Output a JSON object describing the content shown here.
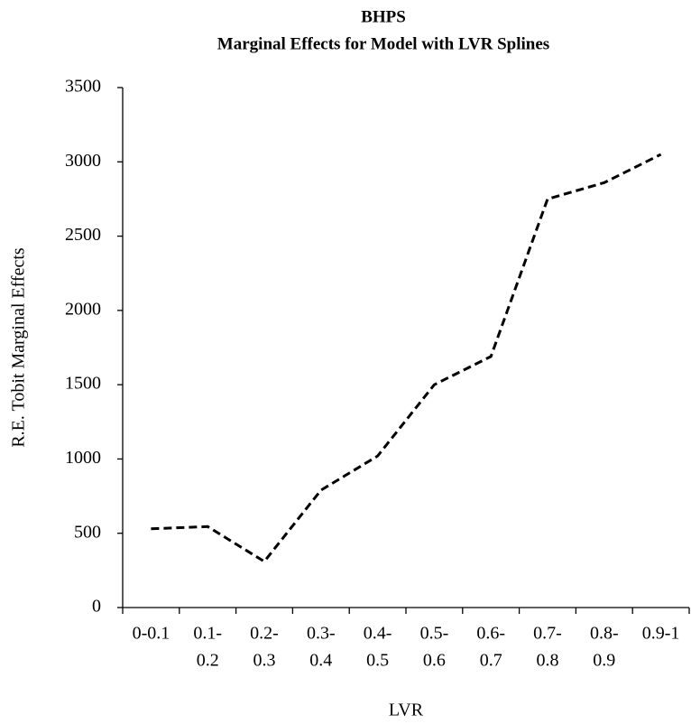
{
  "chart_data": {
    "type": "line",
    "title": [
      "BHPS",
      "Marginal Effects for Model with LVR Splines"
    ],
    "x_label": "LVR",
    "y_label": "R.E. Tobit Marginal Effects",
    "categories": [
      [
        "0-0.1"
      ],
      [
        "0.1-",
        "0.2"
      ],
      [
        "0.2-",
        "0.3"
      ],
      [
        "0.3-",
        "0.4"
      ],
      [
        "0.4-",
        "0.5"
      ],
      [
        "0.5-",
        "0.6"
      ],
      [
        "0.6-",
        "0.7"
      ],
      [
        "0.7-",
        "0.8"
      ],
      [
        "0.8-",
        "0.9"
      ],
      [
        "0.9-1"
      ]
    ],
    "series": [
      {
        "color": "#000000",
        "dashed": true,
        "values": [
          530,
          545,
          310,
          790,
          1020,
          1500,
          1690,
          2750,
          2860,
          3050
        ]
      }
    ],
    "ylim": [
      0,
      3500
    ],
    "yticks": [
      0,
      500,
      1000,
      1500,
      2000,
      2500,
      3000,
      3500
    ],
    "grid": false
  }
}
